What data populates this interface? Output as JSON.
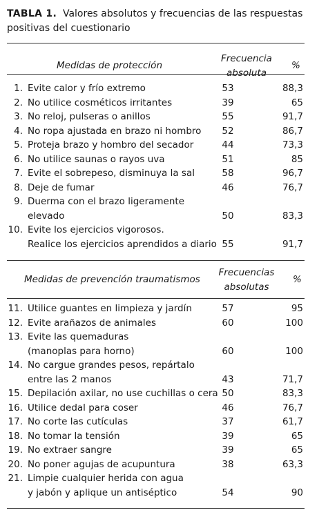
{
  "title": {
    "label": "TABLA 1.",
    "text": "Valores absolutos y frecuencias de las respuestas positivas del cuestionario"
  },
  "sections": [
    {
      "header": {
        "measure": "Medidas de protección",
        "freq": [
          "Frecuencia",
          "absoluta"
        ],
        "pct": "%"
      },
      "rows": [
        {
          "num": "1.",
          "lines": [
            "Evite calor y frío extremo"
          ],
          "freq": "53",
          "pct": "88,3"
        },
        {
          "num": "2.",
          "lines": [
            "No utilice cosméticos irritantes"
          ],
          "freq": "39",
          "pct": "65"
        },
        {
          "num": "3.",
          "lines": [
            "No reloj, pulseras o anillos"
          ],
          "freq": "55",
          "pct": "91,7"
        },
        {
          "num": "4.",
          "lines": [
            "No ropa ajustada en brazo ni hombro"
          ],
          "freq": "52",
          "pct": "86,7"
        },
        {
          "num": "5.",
          "lines": [
            "Proteja brazo y hombro del secador"
          ],
          "freq": "44",
          "pct": "73,3"
        },
        {
          "num": "6.",
          "lines": [
            "No utilice saunas o rayos uva"
          ],
          "freq": "51",
          "pct": "85"
        },
        {
          "num": "7.",
          "lines": [
            "Evite el sobrepeso, disminuya la sal"
          ],
          "freq": "58",
          "pct": "96,7"
        },
        {
          "num": "8.",
          "lines": [
            "Deje de fumar"
          ],
          "freq": "46",
          "pct": "76,7"
        },
        {
          "num": "9.",
          "lines": [
            "Duerma con el brazo ligeramente",
            "elevado"
          ],
          "freq": "50",
          "pct": "83,3"
        },
        {
          "num": "10.",
          "lines": [
            "Evite los ejercicios vigorosos.",
            "Realice los ejercicios aprendidos a diario"
          ],
          "freq": "55",
          "pct": "91,7"
        }
      ]
    },
    {
      "header": {
        "measure": "Medidas de prevención traumatismos",
        "freq": [
          "Frecuencias",
          "absolutas"
        ],
        "pct": "%"
      },
      "rows": [
        {
          "num": "11.",
          "lines": [
            "Utilice guantes en limpieza y jardín"
          ],
          "freq": "57",
          "pct": "95"
        },
        {
          "num": "12.",
          "lines": [
            "Evite arañazos de animales"
          ],
          "freq": "60",
          "pct": "100"
        },
        {
          "num": "13.",
          "lines": [
            "Evite las quemaduras",
            "(manoplas para horno)"
          ],
          "freq": "60",
          "pct": "100"
        },
        {
          "num": "14.",
          "lines": [
            "No cargue grandes pesos, repártalo",
            "entre las 2 manos"
          ],
          "freq": "43",
          "pct": "71,7"
        },
        {
          "num": "15.",
          "lines": [
            "Depilación axilar, no use cuchillas o cera"
          ],
          "freq": "50",
          "pct": "83,3"
        },
        {
          "num": "16.",
          "lines": [
            "Utilice dedal para coser"
          ],
          "freq": "46",
          "pct": "76,7"
        },
        {
          "num": "17.",
          "lines": [
            "No corte las cutículas"
          ],
          "freq": "37",
          "pct": "61,7"
        },
        {
          "num": "18.",
          "lines": [
            "No tomar la tensión"
          ],
          "freq": "39",
          "pct": "65"
        },
        {
          "num": "19.",
          "lines": [
            "No extraer sangre"
          ],
          "freq": "39",
          "pct": "65"
        },
        {
          "num": "20.",
          "lines": [
            "No poner agujas de acupuntura"
          ],
          "freq": "38",
          "pct": "63,3"
        },
        {
          "num": "21.",
          "lines": [
            "Limpie cualquier herida con agua",
            "y jabón y aplique un antiséptico"
          ],
          "freq": "54",
          "pct": "90"
        }
      ]
    }
  ]
}
